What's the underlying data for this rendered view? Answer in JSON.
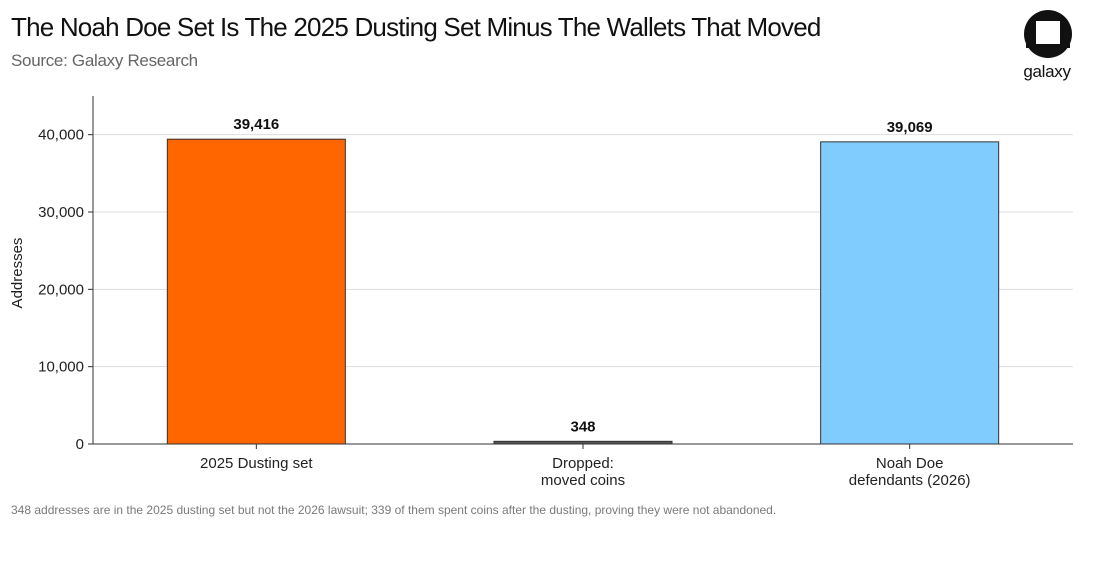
{
  "header": {
    "title": "The Noah Doe Set Is The 2025 Dusting Set Minus The Wallets That Moved",
    "subtitle": "Source: Galaxy Research"
  },
  "brand": {
    "logo_icon": "galaxy-logo-icon",
    "name": "galaxy"
  },
  "footnote": "348 addresses are in the 2025 dusting set but not the 2026 lawsuit; 339 of them spent coins after the dusting, proving they were not abandoned.",
  "chart_data": {
    "type": "bar",
    "categories": [
      [
        "2025 Dusting set"
      ],
      [
        "Dropped:",
        "moved coins"
      ],
      [
        "Noah Doe",
        "defendants (2026)"
      ]
    ],
    "values": [
      39416,
      348,
      39069
    ],
    "value_labels": [
      "39,416",
      "348",
      "39,069"
    ],
    "colors": [
      "#ff6600",
      "#555555",
      "#80ccff"
    ],
    "ylabel": "Addresses",
    "ylim": [
      0,
      45000
    ],
    "yticks": [
      0,
      10000,
      20000,
      30000,
      40000
    ],
    "ytick_labels": [
      "0",
      "10,000",
      "20,000",
      "30,000",
      "40,000"
    ],
    "grid": "horizontal",
    "legend": "none"
  }
}
